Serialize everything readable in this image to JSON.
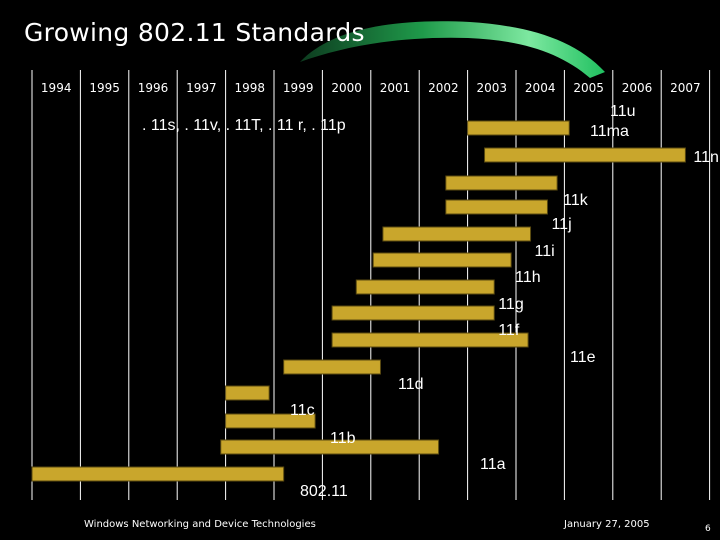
{
  "title": "Growing 802.11 Standards",
  "footer": {
    "left": "Windows Networking and Device Technologies",
    "date": "January 27, 2005",
    "page": "6"
  },
  "colors": {
    "bar": "#c9a62c",
    "swoosh": "#2ecb63",
    "background": "#000000"
  },
  "chart_data": {
    "type": "gantt",
    "years": [
      "1994",
      "1995",
      "1996",
      "1997",
      "1998",
      "1999",
      "2000",
      "2001",
      "2002",
      "2003",
      "2004",
      "2005",
      "2006",
      "2007"
    ],
    "tasks": [
      {
        "label": "11u",
        "start": null,
        "end": null
      },
      {
        "label": "11ma",
        "start": 2003.0,
        "end": 2005.1
      },
      {
        "label": "11n",
        "start": 2003.35,
        "end": 2007.5
      },
      {
        "label": "11k",
        "start": 2002.55,
        "end": 2004.85
      },
      {
        "label": "11j",
        "start": 2002.55,
        "end": 2004.65
      },
      {
        "label": "11i",
        "start": 2001.25,
        "end": 2004.3
      },
      {
        "label": "11h",
        "start": 2001.05,
        "end": 2003.9
      },
      {
        "label": "11g",
        "start": 2000.7,
        "end": 2003.55
      },
      {
        "label": "11f",
        "start": 2000.2,
        "end": 2003.55
      },
      {
        "label": "11e",
        "start": 2000.2,
        "end": 2004.25
      },
      {
        "label": "11d",
        "start": 1999.2,
        "end": 2001.2
      },
      {
        "label": "11c",
        "start": 1998.0,
        "end": 1998.9
      },
      {
        "label": "11b",
        "start": 1998.0,
        "end": 1999.85
      },
      {
        "label": "11a",
        "start": 1997.9,
        "end": 2002.4
      },
      {
        "label": "802.11",
        "start": 1994.0,
        "end": 1999.2
      }
    ],
    "annotation": ". 11s, . 11v, . 11T, . 11 r, . 11p"
  }
}
